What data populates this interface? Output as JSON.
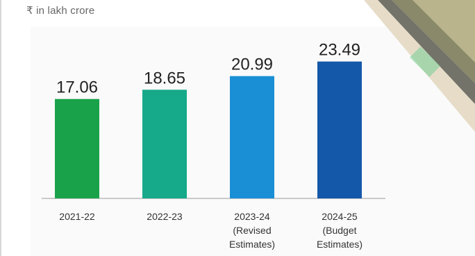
{
  "chart_data": {
    "type": "bar",
    "unit_label": "₹ in lakh crore",
    "categories": [
      [
        "2021-22"
      ],
      [
        "2022-23"
      ],
      [
        "2023-24",
        "(Revised",
        "Estimates)"
      ],
      [
        "2024-25",
        "(Budget",
        "Estimates)"
      ]
    ],
    "values": [
      17.06,
      18.65,
      20.99,
      23.49
    ],
    "value_labels": [
      "17.06",
      "18.65",
      "20.99",
      "23.49"
    ],
    "bar_colors": [
      "#1aa24b",
      "#16a98a",
      "#1b8fd6",
      "#1458a9"
    ],
    "ylim": [
      0,
      25
    ],
    "grid": false,
    "legend": "none"
  }
}
